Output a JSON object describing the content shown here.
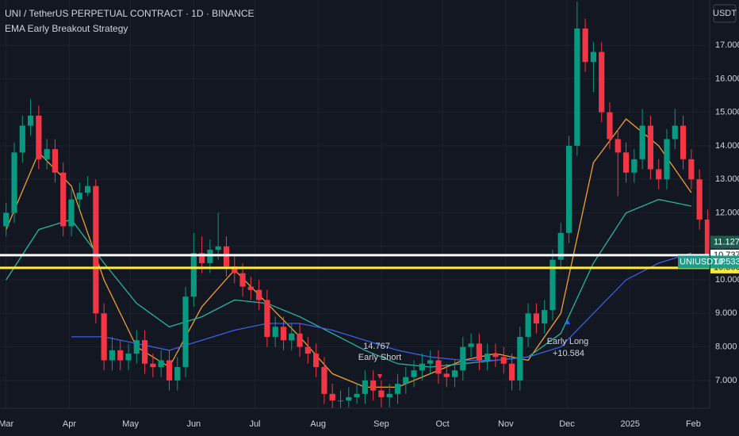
{
  "chart_data": {
    "type": "candlestick",
    "title": "UNI / TetherUS PERPETUAL CONTRACT · 1D · BINANCE",
    "subtitle": "EMA Early Breakout Strategy",
    "currency": "USDT",
    "symbol": "UNIUSDT.P",
    "up_color": "#089981",
    "down_color": "#f23645",
    "x": [
      0,
      4,
      8,
      12,
      16,
      20,
      24,
      28,
      32,
      36,
      40,
      44,
      48,
      52,
      56,
      60,
      64,
      68,
      72,
      76,
      80,
      84,
      88,
      92,
      96,
      100,
      104,
      108,
      112,
      116,
      120,
      124,
      128,
      132,
      136,
      140,
      144,
      148,
      152,
      156,
      160,
      164,
      168,
      172,
      176,
      180,
      184,
      188,
      192,
      196,
      200,
      204,
      208,
      212,
      216,
      220,
      224,
      228,
      232,
      236,
      240,
      244,
      248,
      252,
      256,
      260,
      264,
      268,
      272,
      276,
      280,
      284,
      288,
      292,
      296,
      300,
      304,
      308,
      312,
      316,
      320,
      324,
      328,
      332,
      336,
      340,
      344
    ],
    "candles": [
      [
        11.6,
        12.3,
        11.3,
        12.0
      ],
      [
        12.0,
        14.1,
        11.7,
        13.8
      ],
      [
        13.8,
        14.9,
        13.5,
        14.6
      ],
      [
        14.6,
        15.4,
        14.3,
        14.9
      ],
      [
        14.9,
        15.2,
        13.3,
        13.6
      ],
      [
        13.6,
        14.2,
        13.3,
        13.9
      ],
      [
        13.9,
        14.2,
        12.9,
        13.2
      ],
      [
        13.2,
        13.5,
        11.3,
        11.6
      ],
      [
        11.6,
        12.7,
        11.3,
        12.4
      ],
      [
        12.4,
        12.9,
        12.1,
        12.6
      ],
      [
        12.6,
        13.1,
        12.5,
        12.8
      ],
      [
        12.8,
        13.0,
        8.7,
        9.0
      ],
      [
        9.0,
        9.3,
        7.3,
        7.6
      ],
      [
        7.6,
        8.3,
        7.3,
        7.9
      ],
      [
        7.9,
        8.2,
        7.3,
        7.6
      ],
      [
        7.6,
        8.1,
        7.3,
        7.8
      ],
      [
        7.8,
        8.5,
        7.5,
        8.2
      ],
      [
        8.2,
        8.5,
        7.2,
        7.5
      ],
      [
        7.5,
        7.8,
        7.1,
        7.4
      ],
      [
        7.4,
        7.9,
        7.1,
        7.6
      ],
      [
        7.6,
        7.9,
        6.7,
        7.0
      ],
      [
        7.0,
        7.7,
        6.7,
        7.4
      ],
      [
        7.4,
        9.8,
        7.1,
        9.5
      ],
      [
        9.5,
        11.4,
        9.2,
        10.8
      ],
      [
        10.8,
        11.3,
        10.2,
        10.5
      ],
      [
        10.5,
        11.2,
        10.2,
        10.9
      ],
      [
        10.9,
        12.0,
        10.6,
        11.0
      ],
      [
        11.0,
        11.3,
        10.1,
        10.4
      ],
      [
        10.4,
        10.7,
        9.9,
        10.2
      ],
      [
        10.2,
        10.5,
        9.5,
        9.8
      ],
      [
        9.8,
        10.1,
        9.4,
        9.7
      ],
      [
        9.7,
        10.0,
        9.1,
        9.4
      ],
      [
        9.4,
        9.7,
        8.0,
        8.3
      ],
      [
        8.3,
        8.9,
        8.0,
        8.6
      ],
      [
        8.6,
        8.9,
        7.9,
        8.2
      ],
      [
        8.2,
        8.7,
        7.9,
        8.4
      ],
      [
        8.4,
        8.7,
        7.7,
        8.0
      ],
      [
        8.0,
        8.3,
        7.5,
        7.8
      ],
      [
        7.8,
        8.1,
        7.1,
        7.4
      ],
      [
        7.4,
        7.7,
        6.3,
        6.6
      ],
      [
        6.6,
        6.9,
        6.1,
        6.4
      ],
      [
        6.4,
        6.7,
        6.1,
        6.4
      ],
      [
        6.4,
        6.8,
        6.2,
        6.5
      ],
      [
        6.5,
        6.9,
        6.3,
        6.6
      ],
      [
        6.6,
        7.3,
        6.3,
        7.0
      ],
      [
        7.0,
        7.3,
        6.4,
        6.7
      ],
      [
        6.7,
        7.0,
        6.2,
        6.5
      ],
      [
        6.5,
        6.9,
        6.2,
        6.6
      ],
      [
        6.6,
        7.2,
        6.3,
        6.9
      ],
      [
        6.9,
        7.4,
        6.6,
        7.1
      ],
      [
        7.1,
        7.6,
        6.8,
        7.3
      ],
      [
        7.3,
        7.8,
        7.0,
        7.5
      ],
      [
        7.5,
        7.9,
        7.2,
        7.6
      ],
      [
        7.6,
        7.9,
        6.9,
        7.2
      ],
      [
        7.2,
        7.5,
        6.8,
        7.1
      ],
      [
        7.1,
        7.6,
        6.8,
        7.3
      ],
      [
        7.3,
        8.3,
        7.0,
        8.0
      ],
      [
        8.0,
        8.4,
        7.7,
        8.1
      ],
      [
        8.1,
        8.4,
        7.3,
        7.6
      ],
      [
        7.6,
        8.1,
        7.3,
        7.8
      ],
      [
        7.8,
        8.1,
        7.4,
        7.7
      ],
      [
        7.7,
        8.0,
        7.2,
        7.5
      ],
      [
        7.5,
        7.8,
        6.7,
        7.0
      ],
      [
        7.0,
        8.6,
        6.7,
        8.3
      ],
      [
        8.3,
        9.3,
        8.0,
        9.0
      ],
      [
        9.0,
        9.3,
        8.4,
        8.7
      ],
      [
        8.7,
        9.4,
        8.4,
        9.1
      ],
      [
        9.1,
        10.9,
        8.8,
        10.6
      ],
      [
        10.6,
        11.7,
        10.3,
        11.4
      ],
      [
        11.4,
        14.3,
        11.1,
        14.0
      ],
      [
        14.0,
        18.3,
        13.7,
        17.5
      ],
      [
        17.5,
        17.8,
        16.2,
        16.5
      ],
      [
        16.5,
        17.1,
        15.6,
        16.8
      ],
      [
        16.8,
        17.1,
        14.7,
        15.0
      ],
      [
        15.0,
        15.3,
        13.9,
        14.2
      ],
      [
        14.2,
        14.5,
        12.5,
        13.8
      ],
      [
        13.8,
        14.1,
        12.9,
        13.2
      ],
      [
        13.2,
        13.9,
        12.9,
        13.6
      ],
      [
        13.6,
        15.1,
        13.3,
        14.6
      ],
      [
        14.6,
        14.9,
        13.0,
        13.3
      ],
      [
        13.3,
        13.6,
        12.7,
        13.0
      ],
      [
        13.0,
        14.5,
        12.7,
        14.2
      ],
      [
        14.2,
        15.1,
        13.9,
        14.6
      ],
      [
        14.6,
        14.9,
        13.3,
        13.6
      ],
      [
        13.6,
        13.9,
        12.7,
        13.0
      ],
      [
        13.0,
        13.3,
        11.5,
        11.8
      ],
      [
        11.8,
        12.1,
        10.4,
        10.533
      ]
    ],
    "ema_x": [
      0,
      16,
      32,
      48,
      64,
      80,
      96,
      112,
      128,
      144,
      160,
      176,
      192,
      208,
      224,
      240,
      256,
      272,
      288,
      304,
      320,
      336
    ],
    "emas": [
      {
        "color": "#f0a030",
        "values": [
          11.5,
          13.8,
          12.8,
          10.0,
          8.0,
          7.4,
          9.2,
          10.3,
          9.3,
          8.3,
          7.2,
          6.8,
          6.8,
          7.2,
          7.6,
          7.8,
          7.6,
          9.0,
          13.5,
          14.8,
          14.0,
          12.6
        ]
      },
      {
        "color": "#26b5a0",
        "values": [
          10.0,
          11.5,
          11.8,
          10.5,
          9.3,
          8.6,
          8.9,
          9.4,
          9.3,
          8.9,
          8.4,
          7.9,
          7.5,
          7.4,
          7.5,
          7.6,
          7.7,
          8.4,
          10.5,
          12.0,
          12.4,
          12.2
        ]
      },
      {
        "color": "#3f5fe0",
        "values": [
          null,
          null,
          8.3,
          8.3,
          8.1,
          7.9,
          8.2,
          8.5,
          8.7,
          8.7,
          8.5,
          8.2,
          7.9,
          7.7,
          7.6,
          7.6,
          7.7,
          8.0,
          9.0,
          10.0,
          10.5,
          10.8
        ]
      }
    ],
    "levels": [
      {
        "value": 10.737,
        "label": "10.737",
        "color": "#ffffff"
      },
      {
        "value": 10.36,
        "label": "10.360",
        "color": "#ffeb3b"
      }
    ],
    "price_tags": [
      {
        "value": 11.127,
        "label": "11.127",
        "color": "#1e5a50"
      },
      {
        "value": 10.533,
        "label": "10.533",
        "color": "#1a9e8c"
      }
    ],
    "annotations": [
      {
        "price": "14.767",
        "text": "Early Short"
      },
      {
        "text": "Early Long",
        "price": "+10.584"
      }
    ],
    "xlim": [
      -3,
      345
    ],
    "ylim": [
      6.17,
      18.35
    ],
    "xticks": [
      {
        "value": 0,
        "label": "Mar"
      },
      {
        "value": 31,
        "label": "Apr"
      },
      {
        "value": 61,
        "label": "May"
      },
      {
        "value": 92,
        "label": "Jun"
      },
      {
        "value": 122,
        "label": "Jul"
      },
      {
        "value": 153,
        "label": "Aug"
      },
      {
        "value": 184,
        "label": "Sep"
      },
      {
        "value": 214,
        "label": "Oct"
      },
      {
        "value": 245,
        "label": "Nov"
      },
      {
        "value": 275,
        "label": "Dec"
      },
      {
        "value": 306,
        "label": "2025"
      },
      {
        "value": 337,
        "label": "Feb"
      }
    ],
    "yticks": [
      {
        "value": 7,
        "label": "7.000"
      },
      {
        "value": 8,
        "label": "8.000"
      },
      {
        "value": 9,
        "label": "9.000"
      },
      {
        "value": 10,
        "label": "10.000"
      },
      {
        "value": 11,
        "label": "11.000"
      },
      {
        "value": 12,
        "label": "12.000"
      },
      {
        "value": 13,
        "label": "13.000"
      },
      {
        "value": 14,
        "label": "14.000"
      },
      {
        "value": 15,
        "label": "15.000"
      },
      {
        "value": 16,
        "label": "16.000"
      },
      {
        "value": 17,
        "label": "17.000"
      }
    ],
    "grid": true
  }
}
